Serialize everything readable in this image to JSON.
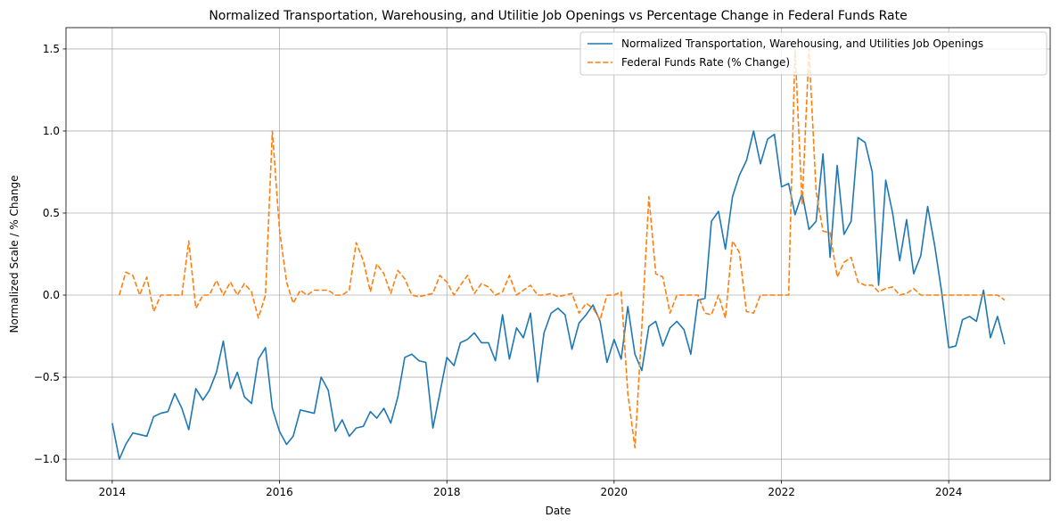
{
  "chart_data": {
    "type": "line",
    "title": "Normalized Transportation, Warehousing, and Utilitie Job Openings vs Percentage Change in Federal Funds Rate",
    "xlabel": "Date",
    "ylabel": "Normalized Scale / % Change",
    "x_type": "date",
    "xlim": [
      "2013-06-13",
      "2025-03-19"
    ],
    "ylim": [
      -1.13,
      1.63
    ],
    "x_ticks": [
      {
        "value": "2014-01-01",
        "label": "2014"
      },
      {
        "value": "2016-01-01",
        "label": "2016"
      },
      {
        "value": "2018-01-01",
        "label": "2018"
      },
      {
        "value": "2020-01-01",
        "label": "2020"
      },
      {
        "value": "2022-01-01",
        "label": "2022"
      },
      {
        "value": "2024-01-01",
        "label": "2024"
      }
    ],
    "y_ticks": [
      {
        "value": -1.0,
        "label": "−1.0"
      },
      {
        "value": -0.5,
        "label": "−0.5"
      },
      {
        "value": 0.0,
        "label": "0.0"
      },
      {
        "value": 0.5,
        "label": "0.5"
      },
      {
        "value": 1.0,
        "label": "1.0"
      },
      {
        "value": 1.5,
        "label": "1.5"
      }
    ],
    "grid": true,
    "legend_position": "top-right",
    "series": [
      {
        "name": "Normalized Transportation, Warehousing, and Utilities Job Openings",
        "color": "#1f77b4",
        "style": "solid",
        "points": [
          [
            "2014-01-01",
            -0.78
          ],
          [
            "2014-02-01",
            -1.0
          ],
          [
            "2014-03-01",
            -0.91
          ],
          [
            "2014-04-01",
            -0.84
          ],
          [
            "2014-05-01",
            -0.85
          ],
          [
            "2014-06-01",
            -0.86
          ],
          [
            "2014-07-01",
            -0.74
          ],
          [
            "2014-08-01",
            -0.72
          ],
          [
            "2014-09-01",
            -0.71
          ],
          [
            "2014-10-01",
            -0.6
          ],
          [
            "2014-11-01",
            -0.69
          ],
          [
            "2014-12-01",
            -0.82
          ],
          [
            "2015-01-01",
            -0.57
          ],
          [
            "2015-02-01",
            -0.64
          ],
          [
            "2015-03-01",
            -0.58
          ],
          [
            "2015-04-01",
            -0.47
          ],
          [
            "2015-05-01",
            -0.28
          ],
          [
            "2015-06-01",
            -0.57
          ],
          [
            "2015-07-01",
            -0.47
          ],
          [
            "2015-08-01",
            -0.62
          ],
          [
            "2015-09-01",
            -0.66
          ],
          [
            "2015-10-01",
            -0.39
          ],
          [
            "2015-11-01",
            -0.32
          ],
          [
            "2015-12-01",
            -0.69
          ],
          [
            "2016-01-01",
            -0.83
          ],
          [
            "2016-02-01",
            -0.91
          ],
          [
            "2016-03-01",
            -0.86
          ],
          [
            "2016-04-01",
            -0.7
          ],
          [
            "2016-05-01",
            -0.71
          ],
          [
            "2016-06-01",
            -0.72
          ],
          [
            "2016-07-01",
            -0.5
          ],
          [
            "2016-08-01",
            -0.58
          ],
          [
            "2016-09-01",
            -0.83
          ],
          [
            "2016-10-01",
            -0.76
          ],
          [
            "2016-11-01",
            -0.86
          ],
          [
            "2016-12-01",
            -0.81
          ],
          [
            "2017-01-01",
            -0.8
          ],
          [
            "2017-02-01",
            -0.71
          ],
          [
            "2017-03-01",
            -0.75
          ],
          [
            "2017-04-01",
            -0.69
          ],
          [
            "2017-05-01",
            -0.78
          ],
          [
            "2017-06-01",
            -0.62
          ],
          [
            "2017-07-01",
            -0.38
          ],
          [
            "2017-08-01",
            -0.36
          ],
          [
            "2017-09-01",
            -0.4
          ],
          [
            "2017-10-01",
            -0.41
          ],
          [
            "2017-11-01",
            -0.81
          ],
          [
            "2017-12-01",
            -0.6
          ],
          [
            "2018-01-01",
            -0.38
          ],
          [
            "2018-02-01",
            -0.43
          ],
          [
            "2018-03-01",
            -0.29
          ],
          [
            "2018-04-01",
            -0.27
          ],
          [
            "2018-05-01",
            -0.23
          ],
          [
            "2018-06-01",
            -0.29
          ],
          [
            "2018-07-01",
            -0.29
          ],
          [
            "2018-08-01",
            -0.4
          ],
          [
            "2018-09-01",
            -0.12
          ],
          [
            "2018-10-01",
            -0.39
          ],
          [
            "2018-11-01",
            -0.2
          ],
          [
            "2018-12-01",
            -0.26
          ],
          [
            "2019-01-01",
            -0.11
          ],
          [
            "2019-02-01",
            -0.53
          ],
          [
            "2019-03-01",
            -0.23
          ],
          [
            "2019-04-01",
            -0.11
          ],
          [
            "2019-05-01",
            -0.08
          ],
          [
            "2019-06-01",
            -0.12
          ],
          [
            "2019-07-01",
            -0.33
          ],
          [
            "2019-08-01",
            -0.17
          ],
          [
            "2019-09-01",
            -0.12
          ],
          [
            "2019-10-01",
            -0.06
          ],
          [
            "2019-11-01",
            -0.16
          ],
          [
            "2019-12-01",
            -0.41
          ],
          [
            "2020-01-01",
            -0.27
          ],
          [
            "2020-02-01",
            -0.39
          ],
          [
            "2020-03-01",
            -0.07
          ],
          [
            "2020-04-01",
            -0.36
          ],
          [
            "2020-05-01",
            -0.46
          ],
          [
            "2020-06-01",
            -0.19
          ],
          [
            "2020-07-01",
            -0.16
          ],
          [
            "2020-08-01",
            -0.31
          ],
          [
            "2020-09-01",
            -0.2
          ],
          [
            "2020-10-01",
            -0.16
          ],
          [
            "2020-11-01",
            -0.21
          ],
          [
            "2020-12-01",
            -0.36
          ],
          [
            "2021-01-01",
            -0.03
          ],
          [
            "2021-02-01",
            -0.02
          ],
          [
            "2021-03-01",
            0.45
          ],
          [
            "2021-04-01",
            0.51
          ],
          [
            "2021-05-01",
            0.28
          ],
          [
            "2021-06-01",
            0.6
          ],
          [
            "2021-07-01",
            0.73
          ],
          [
            "2021-08-01",
            0.82
          ],
          [
            "2021-09-01",
            1.0
          ],
          [
            "2021-10-01",
            0.8
          ],
          [
            "2021-11-01",
            0.95
          ],
          [
            "2021-12-01",
            0.98
          ],
          [
            "2022-01-01",
            0.66
          ],
          [
            "2022-02-01",
            0.68
          ],
          [
            "2022-03-01",
            0.49
          ],
          [
            "2022-04-01",
            0.62
          ],
          [
            "2022-05-01",
            0.4
          ],
          [
            "2022-06-01",
            0.45
          ],
          [
            "2022-07-01",
            0.86
          ],
          [
            "2022-08-01",
            0.23
          ],
          [
            "2022-09-01",
            0.79
          ],
          [
            "2022-10-01",
            0.37
          ],
          [
            "2022-11-01",
            0.45
          ],
          [
            "2022-12-01",
            0.96
          ],
          [
            "2023-01-01",
            0.93
          ],
          [
            "2023-02-01",
            0.75
          ],
          [
            "2023-03-01",
            0.06
          ],
          [
            "2023-04-01",
            0.7
          ],
          [
            "2023-05-01",
            0.5
          ],
          [
            "2023-06-01",
            0.21
          ],
          [
            "2023-07-01",
            0.46
          ],
          [
            "2023-08-01",
            0.13
          ],
          [
            "2023-09-01",
            0.24
          ],
          [
            "2023-10-01",
            0.54
          ],
          [
            "2023-11-01",
            0.3
          ],
          [
            "2023-12-01",
            0.02
          ],
          [
            "2024-01-01",
            -0.32
          ],
          [
            "2024-02-01",
            -0.31
          ],
          [
            "2024-03-01",
            -0.15
          ],
          [
            "2024-04-01",
            -0.13
          ],
          [
            "2024-05-01",
            -0.16
          ],
          [
            "2024-06-01",
            0.03
          ],
          [
            "2024-07-01",
            -0.26
          ],
          [
            "2024-08-01",
            -0.13
          ],
          [
            "2024-09-01",
            -0.3
          ]
        ]
      },
      {
        "name": "Federal Funds Rate (% Change)",
        "color": "#ff7f0e",
        "style": "dashed",
        "points": [
          [
            "2014-02-01",
            0.0
          ],
          [
            "2014-03-01",
            0.14
          ],
          [
            "2014-04-01",
            0.12
          ],
          [
            "2014-05-01",
            0.0
          ],
          [
            "2014-06-01",
            0.11
          ],
          [
            "2014-07-01",
            -0.1
          ],
          [
            "2014-08-01",
            0.0
          ],
          [
            "2014-09-01",
            0.0
          ],
          [
            "2014-10-01",
            0.0
          ],
          [
            "2014-11-01",
            0.0
          ],
          [
            "2014-12-01",
            0.33
          ],
          [
            "2015-01-01",
            -0.08
          ],
          [
            "2015-02-01",
            0.0
          ],
          [
            "2015-03-01",
            0.0
          ],
          [
            "2015-04-01",
            0.09
          ],
          [
            "2015-05-01",
            0.0
          ],
          [
            "2015-06-01",
            0.08
          ],
          [
            "2015-07-01",
            0.0
          ],
          [
            "2015-08-01",
            0.07
          ],
          [
            "2015-09-01",
            0.02
          ],
          [
            "2015-10-01",
            -0.14
          ],
          [
            "2015-11-01",
            0.0
          ],
          [
            "2015-12-01",
            1.0
          ],
          [
            "2016-01-01",
            0.4
          ],
          [
            "2016-02-01",
            0.08
          ],
          [
            "2016-03-01",
            -0.05
          ],
          [
            "2016-04-01",
            0.03
          ],
          [
            "2016-05-01",
            0.0
          ],
          [
            "2016-06-01",
            0.03
          ],
          [
            "2016-07-01",
            0.03
          ],
          [
            "2016-08-01",
            0.03
          ],
          [
            "2016-09-01",
            0.0
          ],
          [
            "2016-10-01",
            0.0
          ],
          [
            "2016-11-01",
            0.03
          ],
          [
            "2016-12-01",
            0.32
          ],
          [
            "2017-01-01",
            0.21
          ],
          [
            "2017-02-01",
            0.02
          ],
          [
            "2017-03-01",
            0.19
          ],
          [
            "2017-04-01",
            0.13
          ],
          [
            "2017-05-01",
            0.01
          ],
          [
            "2017-06-01",
            0.15
          ],
          [
            "2017-07-01",
            0.1
          ],
          [
            "2017-08-01",
            0.0
          ],
          [
            "2017-09-01",
            -0.01
          ],
          [
            "2017-10-01",
            0.0
          ],
          [
            "2017-11-01",
            0.01
          ],
          [
            "2017-12-01",
            0.12
          ],
          [
            "2018-01-01",
            0.08
          ],
          [
            "2018-02-01",
            0.0
          ],
          [
            "2018-03-01",
            0.06
          ],
          [
            "2018-04-01",
            0.12
          ],
          [
            "2018-05-01",
            0.01
          ],
          [
            "2018-06-01",
            0.07
          ],
          [
            "2018-07-01",
            0.05
          ],
          [
            "2018-08-01",
            0.0
          ],
          [
            "2018-09-01",
            0.02
          ],
          [
            "2018-10-01",
            0.12
          ],
          [
            "2018-11-01",
            0.0
          ],
          [
            "2018-12-01",
            0.03
          ],
          [
            "2019-01-01",
            0.06
          ],
          [
            "2019-02-01",
            0.0
          ],
          [
            "2019-03-01",
            0.0
          ],
          [
            "2019-04-01",
            0.01
          ],
          [
            "2019-05-01",
            -0.01
          ],
          [
            "2019-06-01",
            0.0
          ],
          [
            "2019-07-01",
            0.01
          ],
          [
            "2019-08-01",
            -0.11
          ],
          [
            "2019-09-01",
            -0.05
          ],
          [
            "2019-10-01",
            -0.08
          ],
          [
            "2019-11-01",
            -0.15
          ],
          [
            "2019-12-01",
            0.0
          ],
          [
            "2020-01-01",
            0.0
          ],
          [
            "2020-02-01",
            0.02
          ],
          [
            "2020-03-01",
            -0.6
          ],
          [
            "2020-04-01",
            -0.93
          ],
          [
            "2020-05-01",
            -0.2
          ],
          [
            "2020-06-01",
            0.6
          ],
          [
            "2020-07-01",
            0.13
          ],
          [
            "2020-08-01",
            0.11
          ],
          [
            "2020-09-01",
            -0.11
          ],
          [
            "2020-10-01",
            0.0
          ],
          [
            "2020-11-01",
            0.0
          ],
          [
            "2020-12-01",
            0.0
          ],
          [
            "2021-01-01",
            0.0
          ],
          [
            "2021-02-01",
            -0.11
          ],
          [
            "2021-03-01",
            -0.12
          ],
          [
            "2021-04-01",
            0.0
          ],
          [
            "2021-05-01",
            -0.14
          ],
          [
            "2021-06-01",
            0.33
          ],
          [
            "2021-07-01",
            0.26
          ],
          [
            "2021-08-01",
            -0.1
          ],
          [
            "2021-09-01",
            -0.11
          ],
          [
            "2021-10-01",
            0.0
          ],
          [
            "2021-11-01",
            0.0
          ],
          [
            "2021-12-01",
            0.0
          ],
          [
            "2022-01-01",
            0.0
          ],
          [
            "2022-02-01",
            0.0
          ],
          [
            "2022-03-01",
            1.5
          ],
          [
            "2022-04-01",
            0.55
          ],
          [
            "2022-05-01",
            1.5
          ],
          [
            "2022-06-01",
            0.63
          ],
          [
            "2022-07-01",
            0.39
          ],
          [
            "2022-08-01",
            0.38
          ],
          [
            "2022-09-01",
            0.11
          ],
          [
            "2022-10-01",
            0.2
          ],
          [
            "2022-11-01",
            0.23
          ],
          [
            "2022-12-01",
            0.08
          ],
          [
            "2023-01-01",
            0.06
          ],
          [
            "2023-02-01",
            0.06
          ],
          [
            "2023-03-01",
            0.02
          ],
          [
            "2023-04-01",
            0.04
          ],
          [
            "2023-05-01",
            0.05
          ],
          [
            "2023-06-01",
            0.0
          ],
          [
            "2023-07-01",
            0.01
          ],
          [
            "2023-08-01",
            0.04
          ],
          [
            "2023-09-01",
            0.0
          ],
          [
            "2023-10-01",
            0.0
          ],
          [
            "2023-11-01",
            0.0
          ],
          [
            "2023-12-01",
            0.0
          ],
          [
            "2024-01-01",
            0.0
          ],
          [
            "2024-02-01",
            0.0
          ],
          [
            "2024-03-01",
            0.0
          ],
          [
            "2024-04-01",
            0.0
          ],
          [
            "2024-05-01",
            0.0
          ],
          [
            "2024-06-01",
            0.0
          ],
          [
            "2024-07-01",
            0.0
          ],
          [
            "2024-08-01",
            0.0
          ],
          [
            "2024-09-01",
            -0.03
          ]
        ]
      }
    ]
  }
}
